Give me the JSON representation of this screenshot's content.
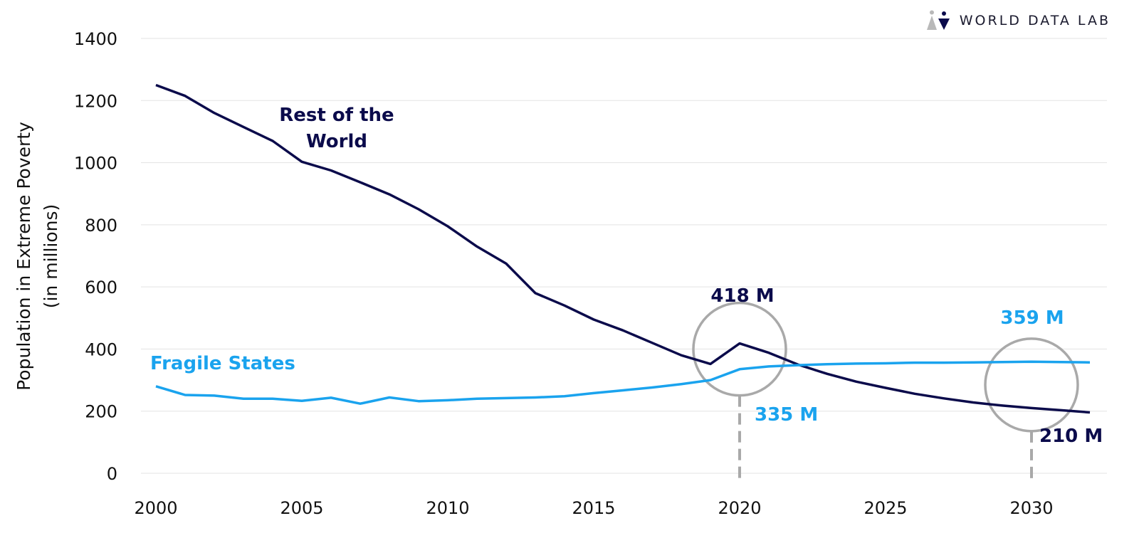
{
  "brand": {
    "name": "WORLD DATA LAB",
    "icon": "world-data-lab-logo-icon"
  },
  "colors": {
    "rest_of_world": "#0b0b4b",
    "fragile_states": "#1aa3ee",
    "grid": "#e3e3e3",
    "circle": "#a9a9a9",
    "dash": "#a9a9a9"
  },
  "chart_data": {
    "type": "line",
    "title": "",
    "xlabel": "",
    "ylabel": "Population in Extreme Poverty",
    "ylabel_sub": "(in millions)",
    "xlim": [
      2000,
      2032
    ],
    "ylim": [
      0,
      1400
    ],
    "grid": "horizontal",
    "x_ticks": [
      "2000",
      "2005",
      "2010",
      "2015",
      "2020",
      "2025",
      "2030"
    ],
    "y_ticks": [
      "0",
      "200",
      "400",
      "600",
      "800",
      "1000",
      "1200",
      "1400"
    ],
    "x": [
      2000,
      2001,
      2002,
      2003,
      2004,
      2005,
      2006,
      2007,
      2008,
      2009,
      2010,
      2011,
      2012,
      2013,
      2014,
      2015,
      2016,
      2017,
      2018,
      2019,
      2020,
      2021,
      2022,
      2023,
      2024,
      2025,
      2026,
      2027,
      2028,
      2029,
      2030,
      2031,
      2032
    ],
    "series": [
      {
        "name": "Rest of the World",
        "label_lines": [
          "Rest of the",
          "World"
        ],
        "values": [
          1250,
          1215,
          1160,
          1115,
          1070,
          1003,
          975,
          937,
          898,
          850,
          795,
          730,
          675,
          580,
          540,
          495,
          460,
          420,
          380,
          352,
          418,
          388,
          350,
          320,
          295,
          275,
          256,
          241,
          228,
          218,
          210,
          203,
          196
        ]
      },
      {
        "name": "Fragile States",
        "label_lines": [
          "Fragile States"
        ],
        "values": [
          280,
          252,
          250,
          240,
          240,
          233,
          243,
          224,
          244,
          232,
          235,
          240,
          242,
          244,
          248,
          258,
          267,
          276,
          287,
          300,
          335,
          344,
          348,
          351,
          353,
          354,
          356,
          356,
          357,
          358,
          359,
          358,
          357
        ]
      }
    ],
    "annotations": [
      {
        "label": "418 M",
        "series": "Rest of the World",
        "x": 2020,
        "y": 418
      },
      {
        "label": "335 M",
        "series": "Fragile States",
        "x": 2020,
        "y": 335
      },
      {
        "label": "359 M",
        "series": "Fragile States",
        "x": 2030,
        "y": 359
      },
      {
        "label": "210 M",
        "series": "Rest of the World",
        "x": 2030,
        "y": 210
      }
    ],
    "highlight_years": [
      2020,
      2030
    ]
  }
}
